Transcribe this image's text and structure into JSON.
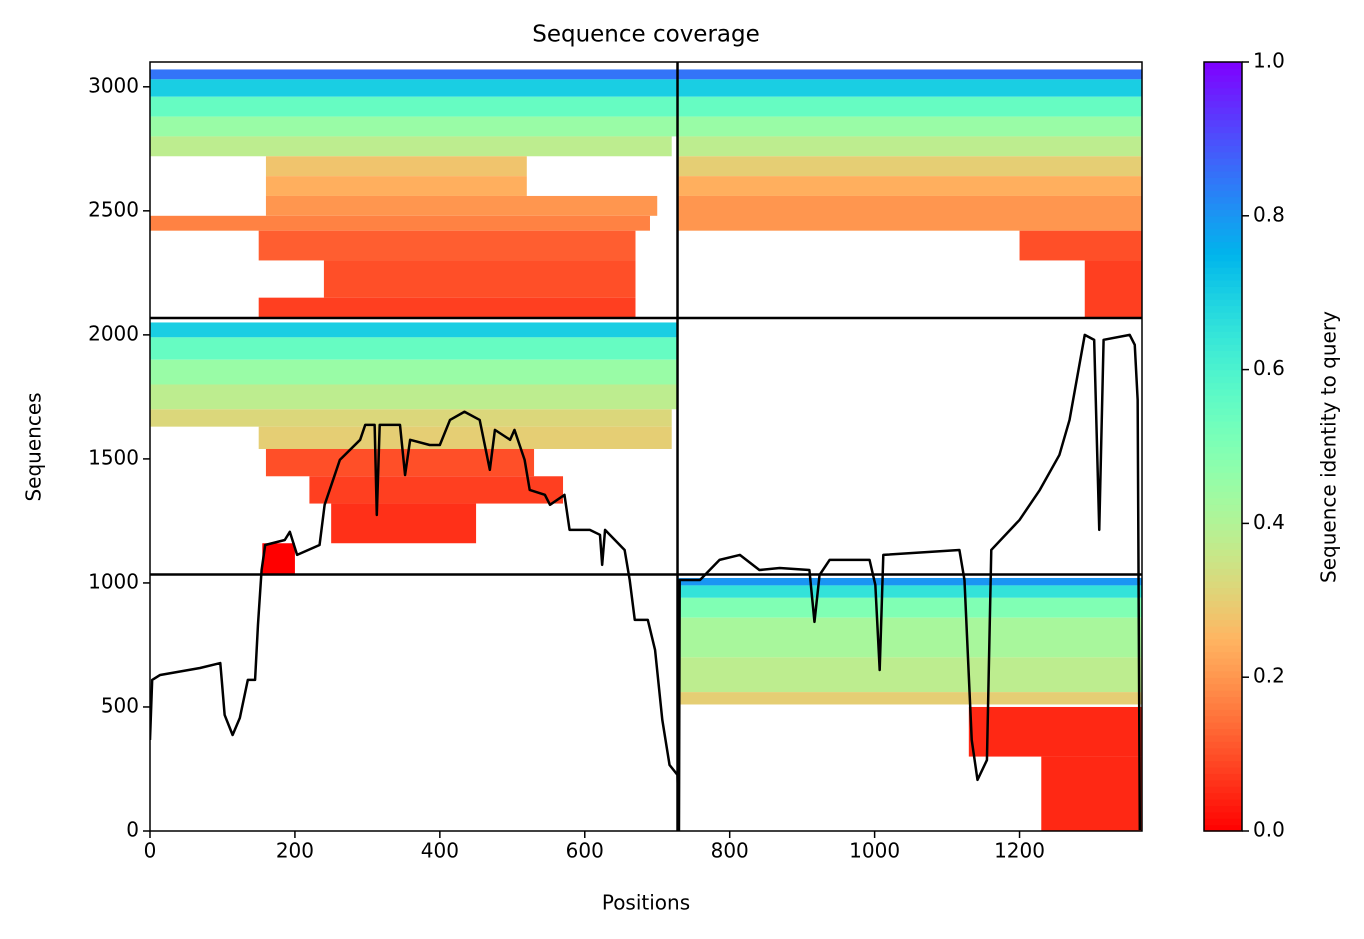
{
  "chart_data": {
    "type": "heatmap",
    "title": "Sequence coverage",
    "xlabel": "Positions",
    "ylabel": "Sequences",
    "xlim": [
      0,
      1369
    ],
    "ylim": [
      0,
      3100
    ],
    "xticks": [
      0,
      200,
      400,
      600,
      800,
      1000,
      1200
    ],
    "yticks": [
      0,
      500,
      1000,
      1500,
      2000,
      2500,
      3000
    ],
    "hlines": [
      1034,
      2068
    ],
    "vlines": [
      728
    ],
    "colorbar": {
      "label": "Sequence identity to query",
      "lim": [
        0,
        1
      ],
      "ticks": [
        {
          "value": 0,
          "label": "0.0"
        },
        {
          "value": 0.2,
          "label": "0.2"
        },
        {
          "value": 0.4,
          "label": "0.4"
        },
        {
          "value": 0.6,
          "label": "0.6"
        },
        {
          "value": 0.8,
          "label": "0.8"
        },
        {
          "value": 1,
          "label": "1.0"
        }
      ],
      "colormap": "rainbow_r"
    },
    "blocks": [
      {
        "positions": [
          0,
          728
        ],
        "sequences": [
          3030,
          3070
        ],
        "identity": 0.85
      },
      {
        "positions": [
          0,
          728
        ],
        "sequences": [
          2960,
          3030
        ],
        "identity": 0.7
      },
      {
        "positions": [
          0,
          728
        ],
        "sequences": [
          2880,
          2960
        ],
        "identity": 0.55
      },
      {
        "positions": [
          0,
          728
        ],
        "sequences": [
          2800,
          2880
        ],
        "identity": 0.45
      },
      {
        "positions": [
          0,
          720
        ],
        "sequences": [
          2720,
          2800
        ],
        "identity": 0.38
      },
      {
        "positions": [
          160,
          520
        ],
        "sequences": [
          2640,
          2720
        ],
        "identity": 0.28
      },
      {
        "positions": [
          160,
          520
        ],
        "sequences": [
          2560,
          2640
        ],
        "identity": 0.24
      },
      {
        "positions": [
          160,
          700
        ],
        "sequences": [
          2480,
          2560
        ],
        "identity": 0.2
      },
      {
        "positions": [
          0,
          690
        ],
        "sequences": [
          2420,
          2480
        ],
        "identity": 0.17
      },
      {
        "positions": [
          150,
          670
        ],
        "sequences": [
          2300,
          2420
        ],
        "identity": 0.12
      },
      {
        "positions": [
          240,
          670
        ],
        "sequences": [
          2150,
          2300
        ],
        "identity": 0.1
      },
      {
        "positions": [
          150,
          670
        ],
        "sequences": [
          2068,
          2150
        ],
        "identity": 0.08
      },
      {
        "positions": [
          728,
          1369
        ],
        "sequences": [
          3030,
          3070
        ],
        "identity": 0.85
      },
      {
        "positions": [
          728,
          1369
        ],
        "sequences": [
          2960,
          3030
        ],
        "identity": 0.7
      },
      {
        "positions": [
          728,
          1369
        ],
        "sequences": [
          2880,
          2960
        ],
        "identity": 0.55
      },
      {
        "positions": [
          728,
          1369
        ],
        "sequences": [
          2800,
          2880
        ],
        "identity": 0.45
      },
      {
        "positions": [
          728,
          1369
        ],
        "sequences": [
          2720,
          2800
        ],
        "identity": 0.38
      },
      {
        "positions": [
          728,
          1369
        ],
        "sequences": [
          2640,
          2720
        ],
        "identity": 0.3
      },
      {
        "positions": [
          728,
          1369
        ],
        "sequences": [
          2560,
          2640
        ],
        "identity": 0.24
      },
      {
        "positions": [
          728,
          1369
        ],
        "sequences": [
          2420,
          2560
        ],
        "identity": 0.2
      },
      {
        "positions": [
          1200,
          1369
        ],
        "sequences": [
          2300,
          2420
        ],
        "identity": 0.1
      },
      {
        "positions": [
          1290,
          1369
        ],
        "sequences": [
          2068,
          2300
        ],
        "identity": 0.08
      },
      {
        "positions": [
          0,
          728
        ],
        "sequences": [
          1990,
          2050
        ],
        "identity": 0.7
      },
      {
        "positions": [
          0,
          728
        ],
        "sequences": [
          1900,
          1990
        ],
        "identity": 0.55
      },
      {
        "positions": [
          0,
          728
        ],
        "sequences": [
          1800,
          1900
        ],
        "identity": 0.45
      },
      {
        "positions": [
          0,
          728
        ],
        "sequences": [
          1700,
          1800
        ],
        "identity": 0.38
      },
      {
        "positions": [
          0,
          720
        ],
        "sequences": [
          1630,
          1700
        ],
        "identity": 0.32
      },
      {
        "positions": [
          150,
          720
        ],
        "sequences": [
          1540,
          1630
        ],
        "identity": 0.3
      },
      {
        "positions": [
          160,
          530
        ],
        "sequences": [
          1430,
          1540
        ],
        "identity": 0.1
      },
      {
        "positions": [
          220,
          570
        ],
        "sequences": [
          1320,
          1430
        ],
        "identity": 0.08
      },
      {
        "positions": [
          250,
          450
        ],
        "sequences": [
          1160,
          1320
        ],
        "identity": 0.06
      },
      {
        "positions": [
          155,
          200
        ],
        "sequences": [
          1034,
          1160
        ],
        "identity": 0
      },
      {
        "positions": [
          728,
          1369
        ],
        "sequences": [
          990,
          1020
        ],
        "identity": 0.8
      },
      {
        "positions": [
          728,
          1369
        ],
        "sequences": [
          940,
          990
        ],
        "identity": 0.65
      },
      {
        "positions": [
          728,
          1369
        ],
        "sequences": [
          860,
          940
        ],
        "identity": 0.5
      },
      {
        "positions": [
          728,
          1369
        ],
        "sequences": [
          700,
          860
        ],
        "identity": 0.42
      },
      {
        "positions": [
          728,
          1369
        ],
        "sequences": [
          560,
          700
        ],
        "identity": 0.38
      },
      {
        "positions": [
          728,
          1369
        ],
        "sequences": [
          510,
          560
        ],
        "identity": 0.3
      },
      {
        "positions": [
          1130,
          1369
        ],
        "sequences": [
          300,
          500
        ],
        "identity": 0.05
      },
      {
        "positions": [
          1230,
          1369
        ],
        "sequences": [
          0,
          300
        ],
        "identity": 0.05
      }
    ],
    "coverage": {
      "color": "#000000",
      "x": [
        0,
        3,
        14,
        69,
        97,
        99,
        103,
        114,
        124,
        135,
        145,
        149,
        154,
        159,
        186,
        193,
        203,
        234,
        241,
        262,
        290,
        297,
        310,
        313,
        317,
        345,
        352,
        359,
        386,
        400,
        414,
        434,
        455,
        469,
        476,
        497,
        503,
        517,
        524,
        545,
        552,
        572,
        579,
        607,
        621,
        624,
        628,
        655,
        662,
        669,
        687,
        697,
        707,
        717,
        728,
        730,
        731,
        759,
        786,
        814,
        841,
        869,
        910,
        917,
        924,
        938,
        993,
        1001,
        1007,
        1012,
        1117,
        1124,
        1134,
        1142,
        1155,
        1161,
        1200,
        1228,
        1255,
        1269,
        1290,
        1303,
        1310,
        1316,
        1352,
        1359,
        1363,
        1366
      ],
      "y": [
        367,
        609,
        629,
        657,
        677,
        609,
        468,
        387,
        456,
        609,
        609,
        831,
        1052,
        1153,
        1173,
        1206,
        1113,
        1153,
        1315,
        1496,
        1577,
        1637,
        1637,
        1274,
        1637,
        1637,
        1435,
        1577,
        1556,
        1556,
        1657,
        1690,
        1657,
        1456,
        1617,
        1577,
        1617,
        1496,
        1375,
        1355,
        1315,
        1355,
        1214,
        1214,
        1194,
        1073,
        1214,
        1133,
        1012,
        851,
        851,
        730,
        448,
        266,
        226,
        4,
        1012,
        1012,
        1093,
        1113,
        1052,
        1060,
        1052,
        843,
        1032,
        1093,
        1093,
        992,
        649,
        1113,
        1133,
        1012,
        367,
        206,
        286,
        1133,
        1254,
        1375,
        1516,
        1657,
        2000,
        1980,
        1214,
        1980,
        2000,
        1960,
        1738,
        4
      ]
    }
  }
}
